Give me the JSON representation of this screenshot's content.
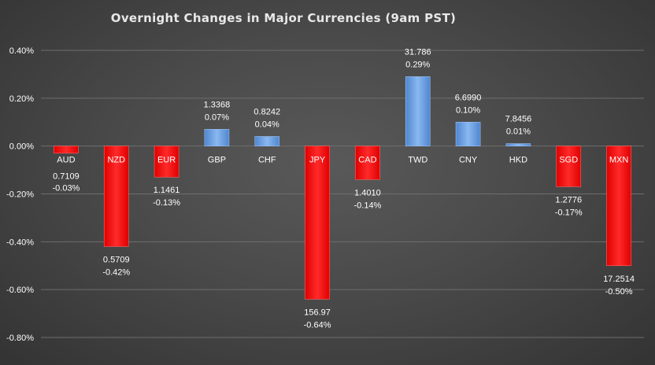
{
  "chart_data": {
    "type": "bar",
    "title": "Overnight Changes in Major Currencies (9am PST)",
    "xlabel": "",
    "ylabel": "",
    "ylim": [
      -0.8,
      0.4
    ],
    "ytick_values": [
      0.4,
      0.2,
      0.0,
      -0.2,
      -0.4,
      -0.6,
      -0.8
    ],
    "ytick_labels": [
      "0.40%",
      "0.20%",
      "0.00%",
      "-0.20%",
      "-0.40%",
      "-0.60%",
      "-0.80%"
    ],
    "grid": true,
    "legend": "none",
    "categories": [
      "AUD",
      "NZD",
      "EUR",
      "GBP",
      "CHF",
      "JPY",
      "CAD",
      "TWD",
      "CNY",
      "HKD",
      "SGD",
      "MXN"
    ],
    "values": [
      -0.03,
      -0.42,
      -0.13,
      0.07,
      0.04,
      -0.64,
      -0.14,
      0.29,
      0.1,
      0.01,
      -0.17,
      -0.5
    ],
    "rates": [
      "0.7109",
      "0.5709",
      "1.1461",
      "1.3368",
      "0.8242",
      "156.97",
      "1.4010",
      "31.786",
      "6.6990",
      "7.8456",
      "1.2776",
      "17.2514"
    ],
    "percent_labels": [
      "-0.03%",
      "-0.42%",
      "-0.13%",
      "0.07%",
      "0.04%",
      "-0.64%",
      "-0.14%",
      "0.29%",
      "0.10%",
      "0.01%",
      "-0.17%",
      "-0.50%"
    ],
    "colors": {
      "positive": "#6fa3e8",
      "negative": "#ff0000",
      "text": "#ffffff",
      "grid": "#6e6e6e"
    }
  }
}
